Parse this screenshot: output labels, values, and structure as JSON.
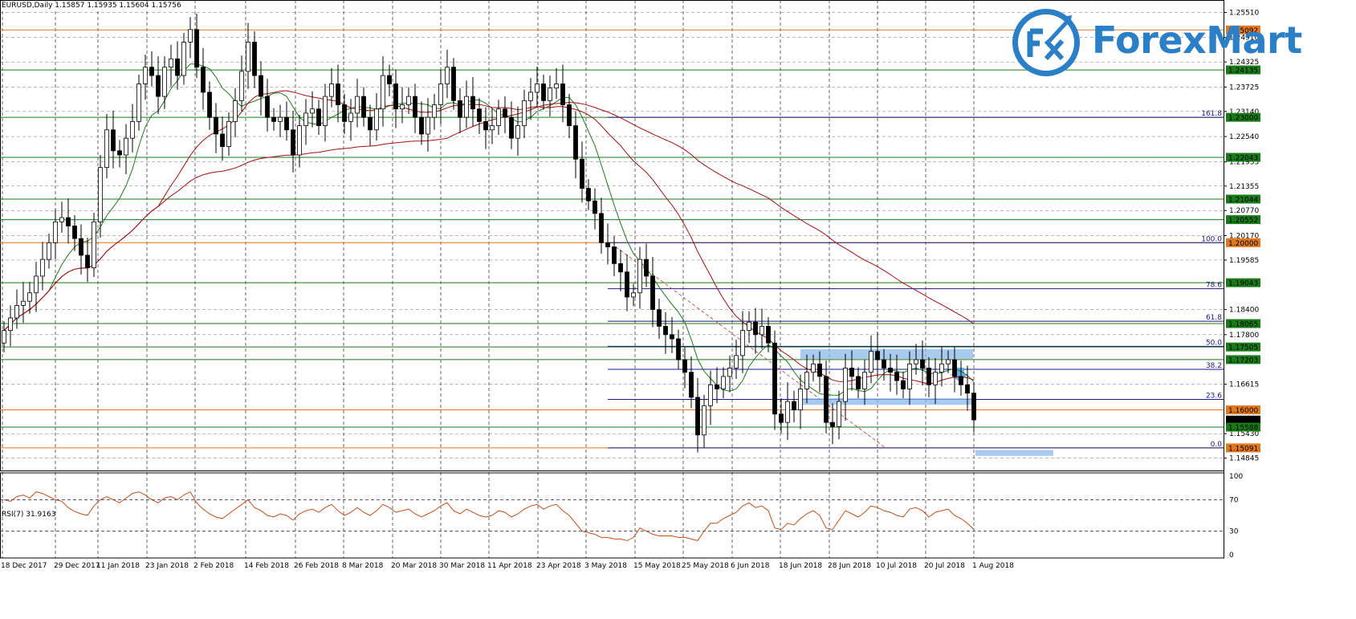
{
  "header": {
    "symbol_info": "EURUSD,Daily  1.15857 1.15935 1.15604 1.15756"
  },
  "brand": {
    "logo_text": "ForexMart",
    "logo_mark": "FX",
    "color": "#2a7fc6"
  },
  "rsi": {
    "label": "RSI(7) 31.9163",
    "levels": [
      "100",
      "70",
      "30",
      "0"
    ]
  },
  "colors": {
    "bull": "#ffffff",
    "bear": "#000000",
    "ma_fast": "#1e7a1e",
    "ma_slow": "#a01010",
    "orange_level": "#e07820",
    "green_level": "#1a7a1a",
    "fib_level": "#1a1a80",
    "rsi_line": "#c0501c",
    "zone": "#8ab8e8"
  },
  "chart_data": {
    "type": "candlestick",
    "symbol": "EURUSD",
    "timeframe": "Daily",
    "x_dates": [
      "18 Dec 2017",
      "29 Dec 2017",
      "11 Jan 2018",
      "23 Jan 2018",
      "2 Feb 2018",
      "14 Feb 2018",
      "26 Feb 2018",
      "8 Mar 2018",
      "20 Mar 2018",
      "30 Mar 2018",
      "11 Apr 2018",
      "23 Apr 2018",
      "3 May 2018",
      "15 May 2018",
      "25 May 2018",
      "6 Jun 2018",
      "18 Jun 2018",
      "28 Jun 2018",
      "10 Jul 2018",
      "20 Jul 2018",
      "1 Aug 2018"
    ],
    "y_ticks": [
      "1.25510",
      "1.24910",
      "1.24325",
      "1.23725",
      "1.23140",
      "1.22540",
      "1.21935",
      "1.21355",
      "1.20770",
      "1.20170",
      "1.19585",
      "1.18400",
      "1.17800",
      "1.16615",
      "1.15430",
      "1.14845"
    ],
    "ylim": [
      1.1455,
      1.2575
    ],
    "price_labels": [
      {
        "value": 1.25092,
        "text": "1.25092",
        "kind": "orange"
      },
      {
        "value": 1.24135,
        "text": "1.24135",
        "kind": "green"
      },
      {
        "value": 1.23,
        "text": "1.23000",
        "kind": "green"
      },
      {
        "value": 1.22043,
        "text": "1.22043",
        "kind": "green"
      },
      {
        "value": 1.21044,
        "text": "1.21044",
        "kind": "green"
      },
      {
        "value": 1.20552,
        "text": "1.20552",
        "kind": "green"
      },
      {
        "value": 1.2,
        "text": "1.20000",
        "kind": "orange"
      },
      {
        "value": 1.19043,
        "text": "1.19043",
        "kind": "green"
      },
      {
        "value": 1.18065,
        "text": "1.18065",
        "kind": "green"
      },
      {
        "value": 1.17505,
        "text": "1.17505",
        "kind": "green"
      },
      {
        "value": 1.17203,
        "text": "1.17203",
        "kind": "green"
      },
      {
        "value": 1.16,
        "text": "1.16000",
        "kind": "orange"
      },
      {
        "value": 1.15756,
        "text": "1.15756",
        "kind": "current"
      },
      {
        "value": 1.15588,
        "text": "1.15588",
        "kind": "green"
      },
      {
        "value": 1.15091,
        "text": "1.15091",
        "kind": "orange"
      }
    ],
    "fib_levels": [
      {
        "label": "161.8",
        "value": 1.23
      },
      {
        "label": "100.0",
        "value": 1.2
      },
      {
        "label": "78.6",
        "value": 1.189
      },
      {
        "label": "61.8",
        "value": 1.1812
      },
      {
        "label": "50.0",
        "value": 1.1752
      },
      {
        "label": "38.2",
        "value": 1.1697
      },
      {
        "label": "23.6",
        "value": 1.1625
      },
      {
        "label": "0.0",
        "value": 1.1509
      }
    ],
    "series": [
      {
        "name": "EURUSD",
        "ohlc_closes": [
          1.179,
          1.182,
          1.185,
          1.186,
          1.188,
          1.192,
          1.196,
          1.2,
          1.205,
          1.206,
          1.204,
          1.201,
          1.197,
          1.194,
          1.205,
          1.218,
          1.227,
          1.222,
          1.221,
          1.225,
          1.229,
          1.238,
          1.242,
          1.24,
          1.235,
          1.242,
          1.244,
          1.24,
          1.248,
          1.251,
          1.242,
          1.236,
          1.23,
          1.226,
          1.223,
          1.229,
          1.234,
          1.241,
          1.248,
          1.24,
          1.235,
          1.23,
          1.229,
          1.23,
          1.227,
          1.221,
          1.228,
          1.231,
          1.232,
          1.228,
          1.235,
          1.238,
          1.233,
          1.229,
          1.231,
          1.235,
          1.23,
          1.227,
          1.232,
          1.24,
          1.238,
          1.232,
          1.233,
          1.235,
          1.23,
          1.226,
          1.23,
          1.233,
          1.238,
          1.242,
          1.234,
          1.23,
          1.235,
          1.232,
          1.229,
          1.227,
          1.228,
          1.232,
          1.23,
          1.225,
          1.228,
          1.234,
          1.236,
          1.238,
          1.234,
          1.237,
          1.238,
          1.233,
          1.228,
          1.22,
          1.213,
          1.21,
          1.207,
          1.2,
          1.199,
          1.195,
          1.193,
          1.187,
          1.188,
          1.196,
          1.192,
          1.184,
          1.18,
          1.178,
          1.177,
          1.172,
          1.169,
          1.163,
          1.154,
          1.161,
          1.166,
          1.165,
          1.168,
          1.17,
          1.173,
          1.179,
          1.181,
          1.178,
          1.18,
          1.176,
          1.159,
          1.157,
          1.162,
          1.16,
          1.165,
          1.169,
          1.171,
          1.168,
          1.157,
          1.156,
          1.162,
          1.17,
          1.168,
          1.165,
          1.169,
          1.174,
          1.172,
          1.17,
          1.169,
          1.167,
          1.165,
          1.171,
          1.172,
          1.17,
          1.166,
          1.169,
          1.171,
          1.172,
          1.168,
          1.166,
          1.164,
          1.1576
        ]
      }
    ],
    "rsi_values": [
      70,
      68,
      74,
      76,
      72,
      80,
      78,
      74,
      70,
      68,
      60,
      55,
      52,
      50,
      62,
      70,
      74,
      70,
      66,
      72,
      78,
      80,
      76,
      70,
      66,
      72,
      74,
      70,
      76,
      80,
      66,
      58,
      52,
      48,
      46,
      52,
      58,
      64,
      70,
      60,
      56,
      50,
      48,
      52,
      50,
      44,
      52,
      56,
      58,
      54,
      60,
      64,
      56,
      50,
      54,
      60,
      54,
      50,
      56,
      64,
      60,
      54,
      56,
      58,
      52,
      48,
      52,
      56,
      62,
      66,
      56,
      52,
      58,
      54,
      50,
      48,
      50,
      56,
      54,
      48,
      52,
      58,
      62,
      64,
      58,
      62,
      64,
      56,
      50,
      40,
      30,
      28,
      26,
      22,
      22,
      20,
      20,
      18,
      22,
      34,
      30,
      26,
      24,
      24,
      24,
      22,
      22,
      20,
      18,
      30,
      40,
      40,
      46,
      50,
      54,
      62,
      66,
      60,
      62,
      56,
      34,
      32,
      40,
      38,
      46,
      52,
      56,
      50,
      34,
      32,
      44,
      56,
      52,
      48,
      54,
      62,
      60,
      56,
      54,
      50,
      48,
      58,
      60,
      56,
      48,
      54,
      56,
      58,
      50,
      46,
      40,
      32
    ]
  }
}
